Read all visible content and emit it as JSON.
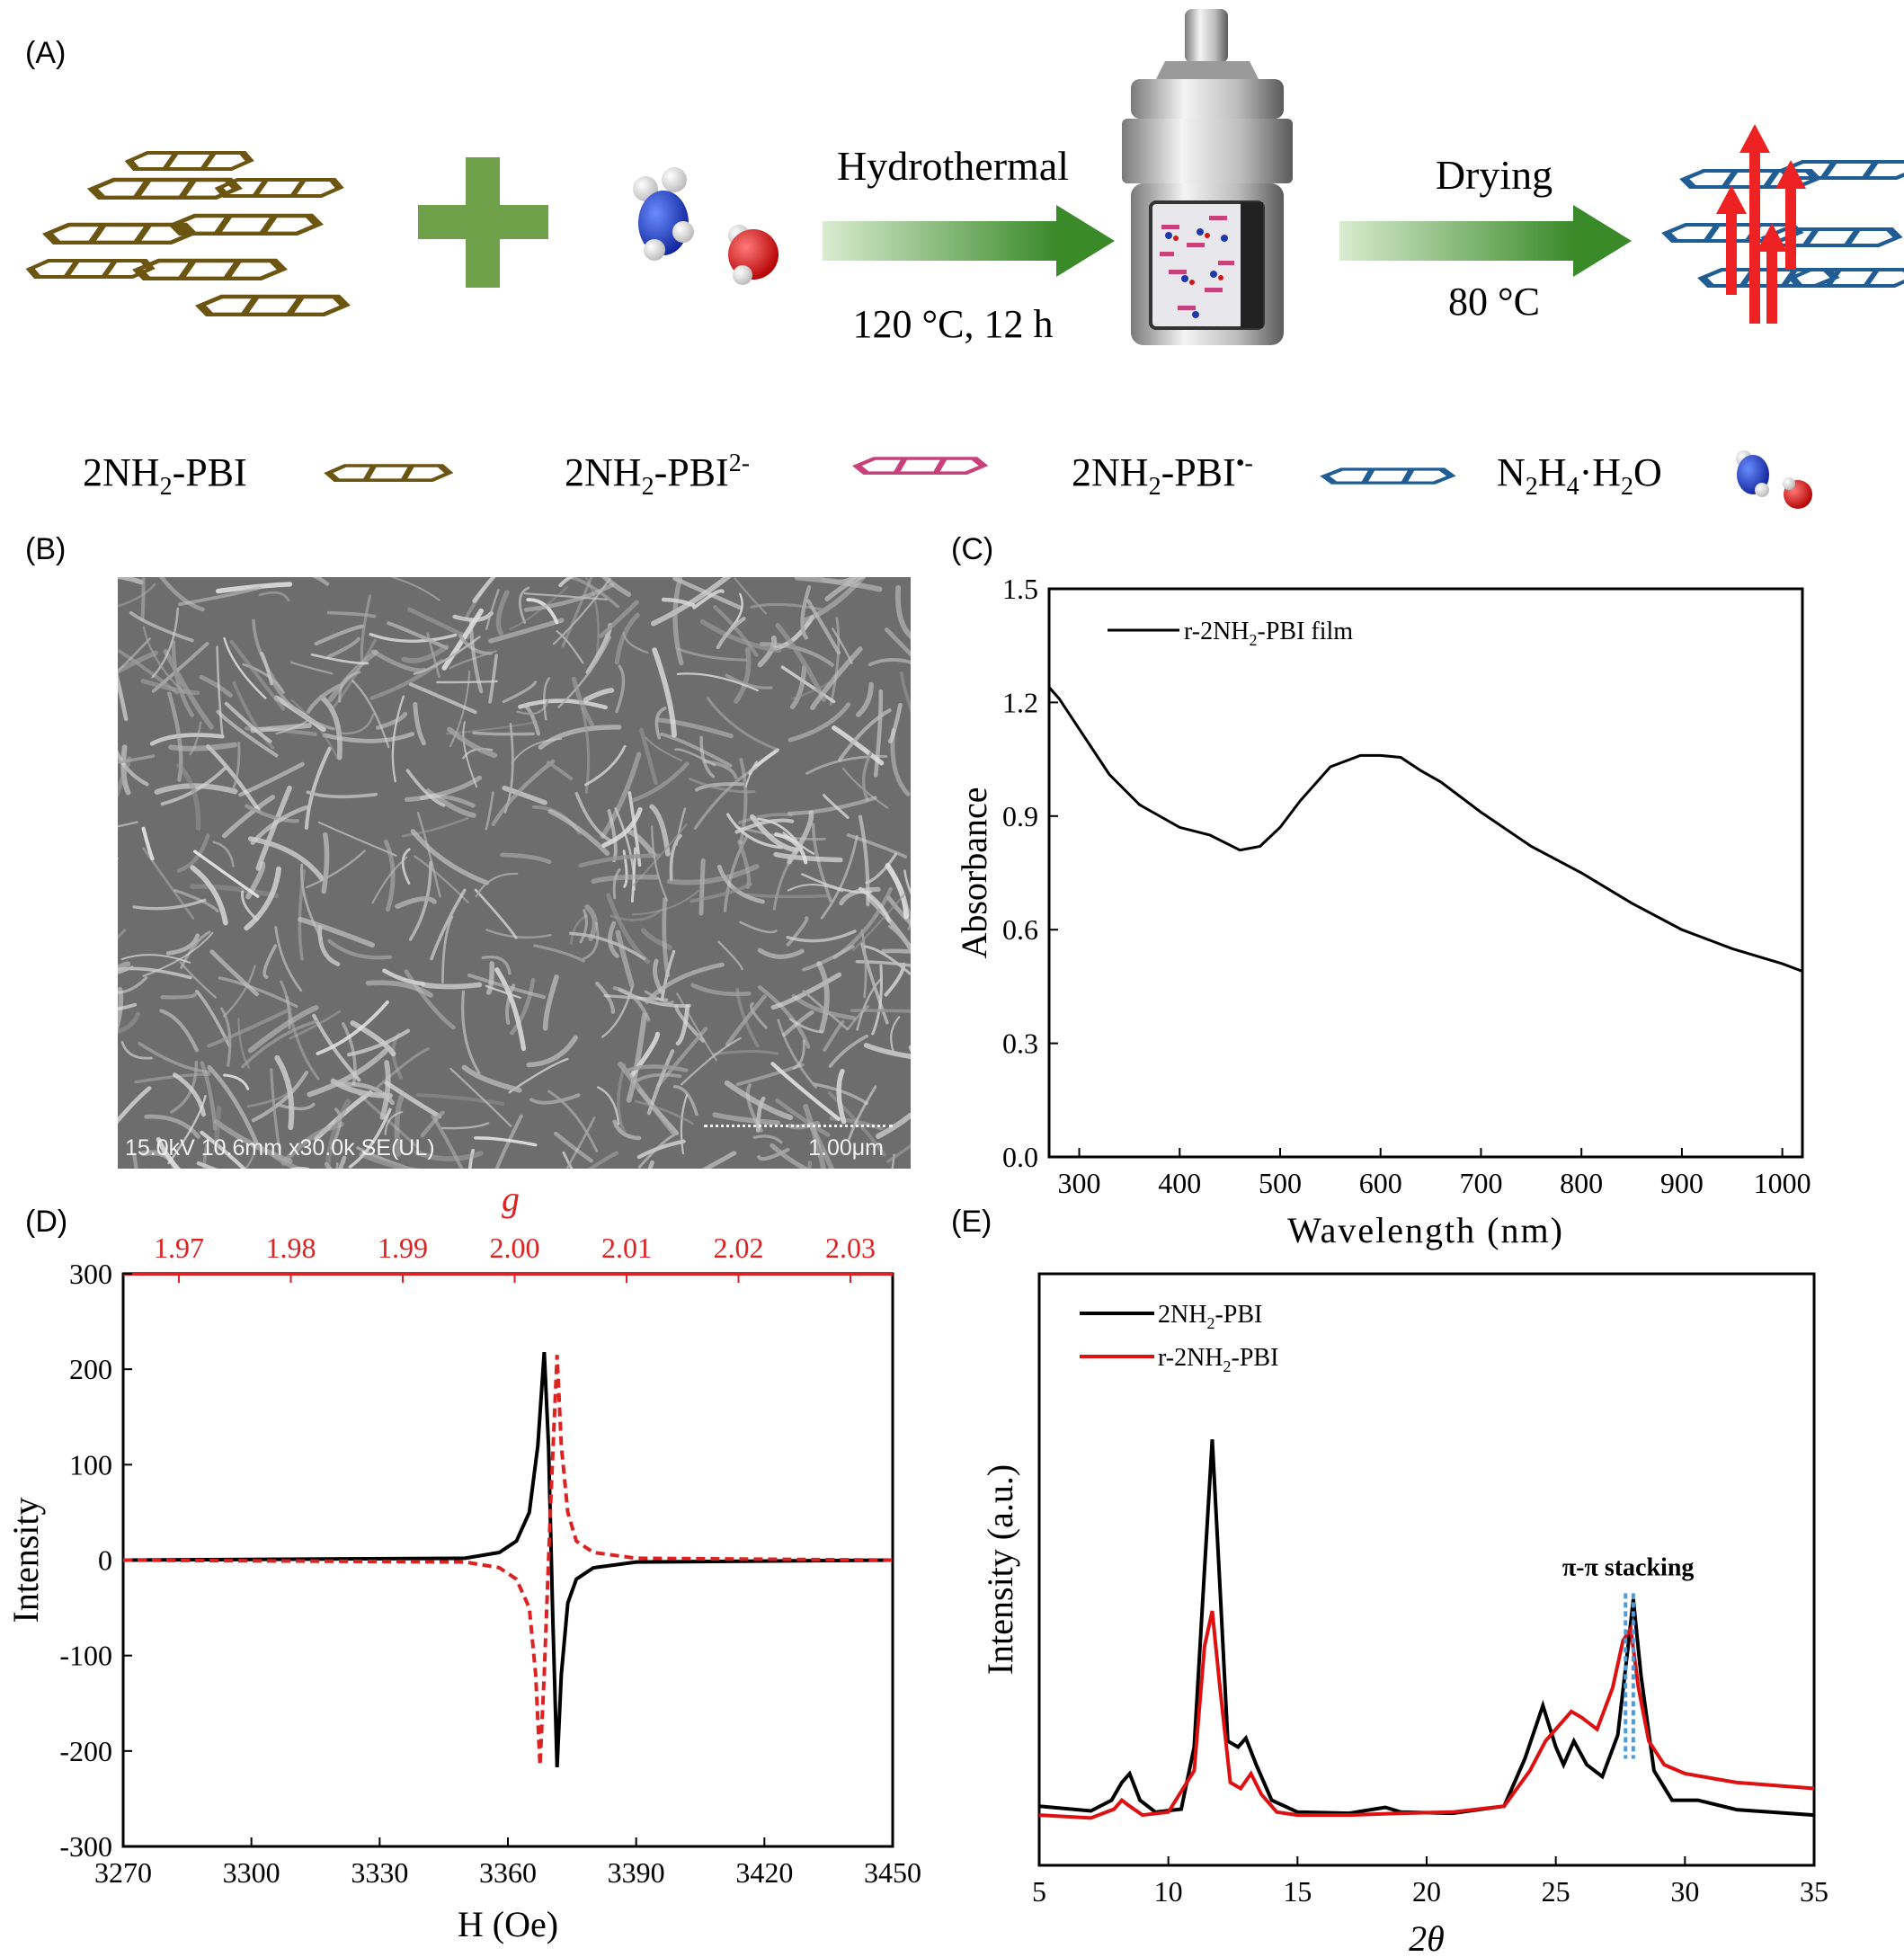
{
  "panels": {
    "a": "(A)",
    "b": "(B)",
    "c": "(C)",
    "d": "(D)",
    "e": "(E)"
  },
  "scheme": {
    "step1_top": "Hydrothermal",
    "step1_bottom": "120 °C, 12 h",
    "step2_top": "Drying",
    "step2_bottom": "80 °C",
    "legend": {
      "base1": "2NH",
      "sub1": "2",
      "rest1": "-PBI",
      "base2": "2NH",
      "sub2": "2",
      "rest2": "-PBI",
      "sup2": "2-",
      "base3": "2NH",
      "sub3": "2",
      "rest3": "-PBI",
      "sup3": "•-",
      "n": "N",
      "n_sub": "2",
      "h": "H",
      "h_sub": "4",
      "tail": "·H",
      "tail_sub": "2",
      "o": "O"
    },
    "colors": {
      "neutral": "#6b5510",
      "dianion": "#c8417a",
      "radical": "#1f5d94",
      "plus": "#6fa04a",
      "arrow": "#3a8a2a",
      "spin": "#ee2222"
    }
  },
  "sem": {
    "caption": "15.0kV 10.6mm x30.0k SE(UL)",
    "scale": "1.00μm"
  },
  "chart_data": [
    {
      "id": "C",
      "type": "line",
      "xlabel": "Wavelength (nm)",
      "ylabel": "Absorbance",
      "xlim": [
        270,
        1020
      ],
      "ylim": [
        0.0,
        1.5
      ],
      "xticks": [
        "300",
        "400",
        "500",
        "600",
        "700",
        "800",
        "900",
        "1000"
      ],
      "yticks": [
        "0.0",
        "0.3",
        "0.6",
        "0.9",
        "1.2",
        "1.5"
      ],
      "legend": "top-left",
      "series": [
        {
          "name": "r-2NH2-PBI film",
          "color": "#000000",
          "x": [
            270,
            280,
            300,
            330,
            360,
            400,
            430,
            460,
            480,
            500,
            520,
            550,
            580,
            600,
            620,
            640,
            660,
            700,
            750,
            800,
            850,
            900,
            950,
            1000,
            1020
          ],
          "y": [
            1.24,
            1.21,
            1.13,
            1.01,
            0.93,
            0.87,
            0.85,
            0.81,
            0.82,
            0.87,
            0.94,
            1.03,
            1.06,
            1.06,
            1.055,
            1.02,
            0.99,
            0.91,
            0.82,
            0.75,
            0.67,
            0.6,
            0.55,
            0.51,
            0.49
          ]
        }
      ],
      "legend_label": {
        "pre": "r-2NH",
        "sub": "2",
        "post": "-PBI film"
      }
    },
    {
      "id": "D",
      "type": "line",
      "xlabel": "H (Oe)",
      "ylabel": "Intensity",
      "top_axis_label": "g",
      "xlim": [
        3270,
        3450
      ],
      "ylim": [
        -300,
        300
      ],
      "xticks": [
        "3270",
        "3300",
        "3330",
        "3360",
        "3390",
        "3420",
        "3450"
      ],
      "yticks": [
        "300",
        "200",
        "100",
        "0",
        "-100",
        "-200",
        "-300"
      ],
      "top_ticks": [
        "1.97",
        "1.98",
        "1.99",
        "2.00",
        "2.01",
        "2.02",
        "2.03"
      ],
      "series": [
        {
          "name": "",
          "color": "#000000",
          "dash": false,
          "x": [
            3270,
            3350,
            3358,
            3362,
            3365,
            3367,
            3368.5,
            3369.5,
            3370.5,
            3371.5,
            3372.5,
            3374,
            3376,
            3380,
            3390,
            3450
          ],
          "y": [
            0,
            2,
            8,
            20,
            50,
            120,
            218,
            120,
            -60,
            -217,
            -120,
            -45,
            -20,
            -8,
            -2,
            0
          ]
        },
        {
          "name": "",
          "color": "#dd2222",
          "dash": true,
          "x": [
            3270,
            3350,
            3358,
            3362,
            3365,
            3366.5,
            3367.5,
            3368.5,
            3370,
            3371.5,
            3372.5,
            3374,
            3376,
            3380,
            3390,
            3450
          ],
          "y": [
            0,
            -2,
            -8,
            -20,
            -50,
            -120,
            -215,
            -120,
            60,
            215,
            120,
            50,
            20,
            8,
            2,
            0
          ]
        }
      ]
    },
    {
      "id": "E",
      "type": "line",
      "xlabel": "2θ",
      "ylabel": "Intensity (a.u.)",
      "xlim": [
        5,
        35
      ],
      "ylim": [
        0,
        1
      ],
      "xticks": [
        "5",
        "10",
        "15",
        "20",
        "25",
        "30",
        "35"
      ],
      "annotation": "π-π stacking",
      "legend": "top-left",
      "series": [
        {
          "name": "2NH2-PBI",
          "color": "#000000",
          "x": [
            5,
            7,
            7.8,
            8.2,
            8.5,
            8.9,
            9.5,
            10.5,
            11.0,
            11.4,
            11.7,
            12.0,
            12.3,
            12.7,
            13.0,
            13.4,
            14.0,
            15,
            17,
            18.4,
            19,
            21,
            23,
            23.8,
            24.5,
            25.0,
            25.3,
            25.7,
            26.2,
            26.8,
            27.4,
            27.8,
            28.0,
            28.3,
            28.8,
            29.5,
            30.5,
            32,
            35
          ],
          "y": [
            0.1,
            0.092,
            0.11,
            0.14,
            0.155,
            0.11,
            0.09,
            0.095,
            0.2,
            0.5,
            0.72,
            0.47,
            0.21,
            0.2,
            0.215,
            0.17,
            0.11,
            0.09,
            0.088,
            0.098,
            0.09,
            0.088,
            0.1,
            0.18,
            0.27,
            0.2,
            0.17,
            0.21,
            0.17,
            0.15,
            0.22,
            0.37,
            0.45,
            0.32,
            0.16,
            0.11,
            0.11,
            0.094,
            0.085
          ]
        },
        {
          "name": "r-2NH2-PBI",
          "color": "#dd1111",
          "x": [
            5,
            7,
            7.9,
            8.2,
            8.5,
            9.0,
            10,
            11.0,
            11.4,
            11.7,
            12.0,
            12.4,
            12.8,
            13.2,
            13.6,
            14.2,
            15,
            17,
            19,
            21,
            23,
            24.0,
            24.6,
            25.2,
            25.6,
            26.0,
            26.6,
            27.2,
            27.6,
            27.9,
            28.2,
            28.6,
            29.2,
            30,
            32,
            35
          ],
          "y": [
            0.085,
            0.08,
            0.095,
            0.11,
            0.1,
            0.085,
            0.09,
            0.16,
            0.37,
            0.43,
            0.3,
            0.14,
            0.13,
            0.155,
            0.12,
            0.09,
            0.085,
            0.085,
            0.088,
            0.09,
            0.1,
            0.16,
            0.21,
            0.24,
            0.26,
            0.25,
            0.23,
            0.3,
            0.38,
            0.4,
            0.3,
            0.21,
            0.17,
            0.155,
            0.14,
            0.13
          ]
        }
      ],
      "legend_labels": [
        {
          "pre": "2NH",
          "sub": "2",
          "post": "-PBI"
        },
        {
          "pre": "r-2NH",
          "sub": "2",
          "post": "-PBI"
        }
      ]
    }
  ]
}
